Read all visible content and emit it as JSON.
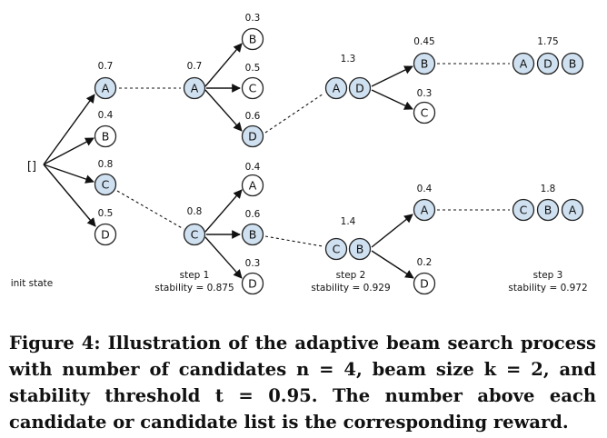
{
  "init": {
    "symbol": "[]",
    "label": "init state"
  },
  "steps": [
    {
      "label": "step 1",
      "stability": "stability = 0.875"
    },
    {
      "label": "step 2",
      "stability": "stability = 0.929"
    },
    {
      "label": "step 3",
      "stability": "stability = 0.972"
    }
  ],
  "level1": [
    {
      "letter": "A",
      "reward": "0.7",
      "selected": true
    },
    {
      "letter": "B",
      "reward": "0.4",
      "selected": false
    },
    {
      "letter": "C",
      "reward": "0.8",
      "selected": true
    },
    {
      "letter": "D",
      "reward": "0.5",
      "selected": false
    }
  ],
  "step1_beams": [
    {
      "parent": {
        "letter": "A",
        "reward": "0.7"
      },
      "children": [
        {
          "letter": "B",
          "reward": "0.3",
          "selected": false
        },
        {
          "letter": "C",
          "reward": "0.5",
          "selected": false
        },
        {
          "letter": "D",
          "reward": "0.6",
          "selected": true
        }
      ]
    },
    {
      "parent": {
        "letter": "C",
        "reward": "0.8"
      },
      "children": [
        {
          "letter": "A",
          "reward": "0.4",
          "selected": false
        },
        {
          "letter": "B",
          "reward": "0.6",
          "selected": true
        },
        {
          "letter": "D",
          "reward": "0.3",
          "selected": false
        }
      ]
    }
  ],
  "step2_beams": [
    {
      "list": [
        "A",
        "D"
      ],
      "reward": "1.3",
      "children": [
        {
          "letter": "B",
          "reward": "0.45",
          "selected": true
        },
        {
          "letter": "C",
          "reward": "0.3",
          "selected": false
        }
      ]
    },
    {
      "list": [
        "C",
        "B"
      ],
      "reward": "1.4",
      "children": [
        {
          "letter": "A",
          "reward": "0.4",
          "selected": true
        },
        {
          "letter": "D",
          "reward": "0.2",
          "selected": false
        }
      ]
    }
  ],
  "step3_beams": [
    {
      "list": [
        "A",
        "D",
        "B"
      ],
      "reward": "1.75"
    },
    {
      "list": [
        "C",
        "B",
        "A"
      ],
      "reward": "1.8"
    }
  ],
  "caption": "Figure 4: Illustration of the adaptive beam search process with number of candidates n = 4, beam size k = 2, and stability threshold t = 0.95. The number above each candidate or candidate list is the corresponding reward."
}
